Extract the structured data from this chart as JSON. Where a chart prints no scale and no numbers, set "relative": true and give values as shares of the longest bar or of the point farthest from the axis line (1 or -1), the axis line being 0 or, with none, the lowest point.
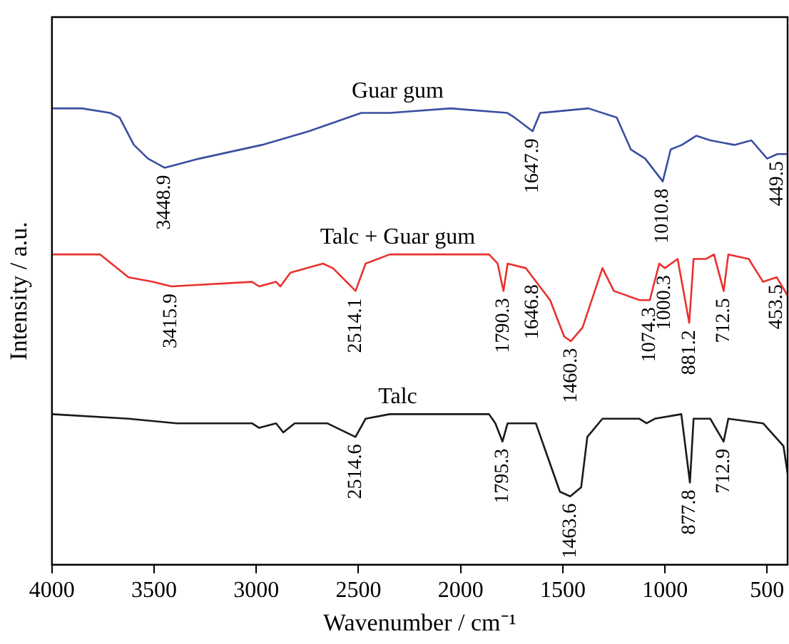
{
  "chart_data": {
    "type": "line",
    "xlabel": "Wavenumber / cm⁻¹",
    "ylabel": "Intensity / a.u.",
    "relative": true,
    "xlim": [
      4000,
      400
    ],
    "xticks": [
      4000,
      3500,
      3000,
      2500,
      2000,
      1500,
      1000,
      500
    ],
    "grid": false,
    "legend": false,
    "marker": "none",
    "series": [
      {
        "name": "Guar gum",
        "color": "#3a4fa0",
        "x": [
          4000,
          3854,
          3715,
          3669,
          3599,
          3530,
          3448.9,
          3278,
          2972,
          2743,
          2486,
          2347,
          2049,
          1771,
          1736,
          1647.9,
          1611,
          1375,
          1236,
          1167,
          1097,
          1010.8,
          972,
          917,
          847,
          778,
          660,
          577,
          500,
          449.5,
          400
        ],
        "values": [
          1.0,
          1.0,
          0.99,
          0.98,
          0.92,
          0.89,
          0.87,
          0.89,
          0.92,
          0.95,
          0.99,
          0.99,
          1.0,
          0.99,
          0.98,
          0.95,
          0.99,
          1.0,
          0.98,
          0.91,
          0.89,
          0.84,
          0.91,
          0.92,
          0.94,
          0.93,
          0.92,
          0.93,
          0.89,
          0.9,
          0.9
        ]
      },
      {
        "name": "Talc + Guar gum",
        "color": "#e8322e",
        "x": [
          4000,
          3764,
          3625,
          3507,
          3415.9,
          3021,
          2986,
          2903,
          2882,
          2833,
          2674,
          2625,
          2514.1,
          2465,
          2347,
          2167,
          2097,
          1861,
          1819,
          1790.3,
          1770,
          1681,
          1646.8,
          1562,
          1493,
          1460.3,
          1403,
          1306,
          1250,
          1125,
          1074.3,
          1028,
          1000.3,
          938,
          881.2,
          860,
          800,
          760,
          712.5,
          690,
          590,
          520,
          453.5,
          400
        ],
        "values": [
          0.68,
          0.68,
          0.63,
          0.62,
          0.61,
          0.62,
          0.61,
          0.62,
          0.61,
          0.64,
          0.66,
          0.65,
          0.6,
          0.66,
          0.68,
          0.68,
          0.68,
          0.68,
          0.66,
          0.6,
          0.66,
          0.65,
          0.63,
          0.58,
          0.5,
          0.49,
          0.52,
          0.65,
          0.6,
          0.58,
          0.58,
          0.66,
          0.65,
          0.67,
          0.53,
          0.67,
          0.67,
          0.68,
          0.6,
          0.68,
          0.67,
          0.62,
          0.63,
          0.59
        ]
      },
      {
        "name": "Talc",
        "color": "#1a1a1a",
        "x": [
          4000,
          3625,
          3389,
          3021,
          2986,
          2903,
          2868,
          2812,
          2653,
          2514.6,
          2465,
          2347,
          1861,
          1830,
          1795.3,
          1770,
          1632,
          1577,
          1514,
          1463.6,
          1410,
          1380,
          1306,
          1125,
          1090,
          1050,
          920,
          877.8,
          860,
          778,
          712.9,
          690,
          520,
          420,
          400
        ],
        "values": [
          0.33,
          0.32,
          0.31,
          0.31,
          0.3,
          0.31,
          0.29,
          0.31,
          0.31,
          0.28,
          0.32,
          0.33,
          0.33,
          0.31,
          0.27,
          0.31,
          0.31,
          0.24,
          0.16,
          0.15,
          0.17,
          0.28,
          0.32,
          0.32,
          0.31,
          0.32,
          0.33,
          0.18,
          0.32,
          0.32,
          0.27,
          0.32,
          0.31,
          0.26,
          0.2
        ]
      }
    ],
    "annotations": [
      {
        "text": "3448.9",
        "x": 3448.9,
        "y": 0.87
      },
      {
        "text": "1647.9",
        "x": 1647.9,
        "y": 0.95
      },
      {
        "text": "1010.8",
        "x": 1010.8,
        "y": 0.84
      },
      {
        "text": "449.5",
        "x": 449.5,
        "y": 0.9
      },
      {
        "text": "3415.9",
        "x": 3415.9,
        "y": 0.61
      },
      {
        "text": "2514.1",
        "x": 2514.1,
        "y": 0.6
      },
      {
        "text": "1790.3",
        "x": 1790.3,
        "y": 0.6
      },
      {
        "text": "1646.8",
        "x": 1646.8,
        "y": 0.63
      },
      {
        "text": "1460.3",
        "x": 1460.3,
        "y": 0.49
      },
      {
        "text": "1074.3",
        "x": 1074.3,
        "y": 0.58
      },
      {
        "text": "1000.3",
        "x": 1000.3,
        "y": 0.65
      },
      {
        "text": "881.2",
        "x": 881.2,
        "y": 0.53
      },
      {
        "text": "712.5",
        "x": 712.5,
        "y": 0.6
      },
      {
        "text": "453.5",
        "x": 453.5,
        "y": 0.63
      },
      {
        "text": "2514.6",
        "x": 2514.6,
        "y": 0.28
      },
      {
        "text": "1795.3",
        "x": 1795.3,
        "y": 0.27
      },
      {
        "text": "1463.6",
        "x": 1463.6,
        "y": 0.15
      },
      {
        "text": "877.8",
        "x": 877.8,
        "y": 0.18
      },
      {
        "text": "712.9",
        "x": 712.9,
        "y": 0.27
      }
    ]
  }
}
